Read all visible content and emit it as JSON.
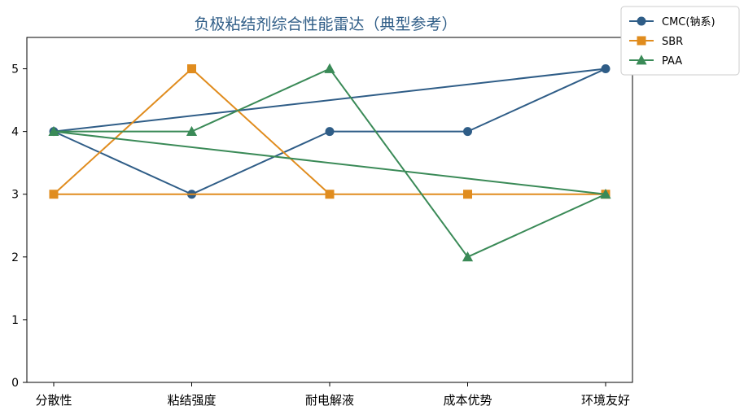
{
  "chart_data": {
    "type": "line",
    "title": "负极粘结剂综合性能雷达（典型参考）",
    "xlabel": "",
    "ylabel": "",
    "categories": [
      "分散性",
      "粘结强度",
      "耐电解液",
      "成本优势",
      "环境友好"
    ],
    "ylim": [
      0,
      5.5
    ],
    "yticks": [
      0,
      1,
      2,
      3,
      4,
      5
    ],
    "grid": false,
    "legend_position": "top-right",
    "closed_loop": true,
    "series": [
      {
        "name": "CMC(钠系)",
        "values": [
          4,
          3,
          4,
          4,
          5
        ],
        "color": "#2f5d87",
        "marker": "circle"
      },
      {
        "name": "SBR",
        "values": [
          3,
          5,
          3,
          3,
          3
        ],
        "color": "#e08c1e",
        "marker": "square"
      },
      {
        "name": "PAA",
        "values": [
          4,
          4,
          5,
          2,
          3
        ],
        "color": "#3a8a57",
        "marker": "triangle"
      }
    ]
  }
}
